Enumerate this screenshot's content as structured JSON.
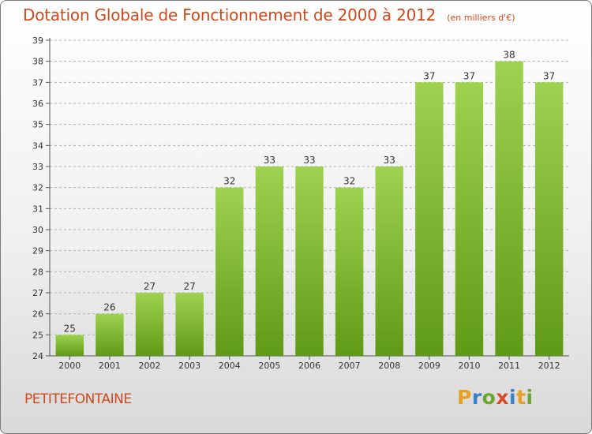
{
  "header": {
    "title": "Dotation Globale de Fonctionnement de 2000 à 2012",
    "subtitle": "(en milliers d'€)"
  },
  "footer": {
    "commune": "PETITEFONTAINE",
    "logo_letters": [
      "P",
      "r",
      "o",
      "x",
      "i",
      "t",
      "i"
    ],
    "logo_colors": [
      "#e8a020",
      "#3b7fc6",
      "#6aa72f",
      "#d84a2a",
      "#3b7fc6",
      "#e8a020",
      "#6aa72f"
    ],
    "logo_icon": "proxiti-logo"
  },
  "chart_data": {
    "type": "bar",
    "title": "Dotation Globale de Fonctionnement de 2000 à 2012",
    "subtitle": "(en milliers d'€)",
    "categories": [
      "2000",
      "2001",
      "2002",
      "2003",
      "2004",
      "2005",
      "2006",
      "2007",
      "2008",
      "2009",
      "2010",
      "2011",
      "2012"
    ],
    "values": [
      25,
      26,
      27,
      27,
      32,
      33,
      33,
      32,
      33,
      37,
      37,
      38,
      37
    ],
    "data_labels": [
      "25",
      "26",
      "27",
      "27",
      "32",
      "33",
      "33",
      "32",
      "33",
      "37",
      "37",
      "38",
      "37"
    ],
    "ylim": [
      24,
      39
    ],
    "yticks": [
      24,
      25,
      26,
      27,
      28,
      29,
      30,
      31,
      32,
      33,
      34,
      35,
      36,
      37,
      38,
      39
    ],
    "ytick_labels": [
      "24",
      "25",
      "26",
      "27",
      "28",
      "29",
      "30",
      "31",
      "32",
      "33",
      "34",
      "35",
      "36",
      "37",
      "38",
      "39"
    ],
    "xlabel": "",
    "ylabel": "",
    "grid": "horizontal-dashed",
    "bar_color_top": "#9ed251",
    "bar_color_bottom": "#5f9a16",
    "legend": "none"
  }
}
